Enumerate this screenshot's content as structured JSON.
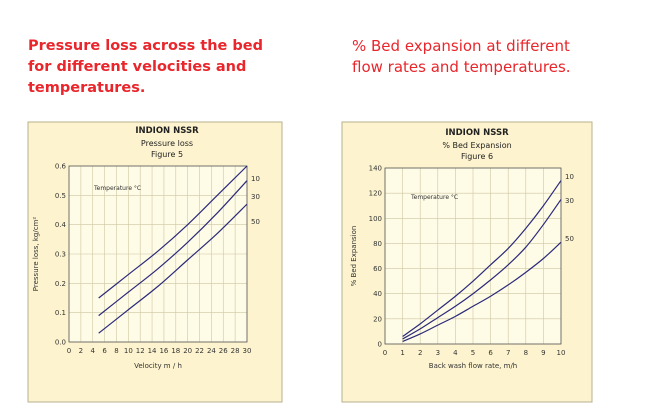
{
  "captions": {
    "left": [
      "Pressure loss across the bed",
      "for different velocities and",
      "temperatures."
    ],
    "right": [
      "% Bed expansion at different",
      "flow rates and temperatures."
    ]
  },
  "chart_data": [
    {
      "type": "line",
      "title": "INDION NSSR",
      "subtitle": "Pressure loss",
      "figure": "Figure 5",
      "xlabel": "Velocity m / h",
      "ylabel": "Pressure loss, kg/cm²",
      "annotation": "Temperature °C",
      "xlim": [
        0,
        30
      ],
      "ylim": [
        0,
        0.6
      ],
      "xticks": [
        "0",
        "2",
        "4",
        "6",
        "8",
        "10",
        "12",
        "14",
        "16",
        "18",
        "20",
        "22",
        "24",
        "26",
        "28",
        "30"
      ],
      "yticks": [
        "0.0",
        "0.1",
        "0.2",
        "0.3",
        "0.4",
        "0.5",
        "0.6"
      ],
      "grid": true,
      "series": [
        {
          "name": "10",
          "x": [
            5,
            10,
            15,
            20,
            25,
            30
          ],
          "y": [
            0.15,
            0.23,
            0.31,
            0.4,
            0.5,
            0.6
          ]
        },
        {
          "name": "30",
          "x": [
            5,
            10,
            15,
            20,
            25,
            30
          ],
          "y": [
            0.09,
            0.17,
            0.25,
            0.34,
            0.44,
            0.55
          ]
        },
        {
          "name": "50",
          "x": [
            5,
            10,
            15,
            20,
            25,
            30
          ],
          "y": [
            0.03,
            0.11,
            0.19,
            0.28,
            0.37,
            0.47
          ]
        }
      ]
    },
    {
      "type": "line",
      "title": "INDION NSSR",
      "subtitle": "% Bed Expansion",
      "figure": "Figure 6",
      "xlabel": "Back wash flow rate, m/h",
      "ylabel": "% Bed Expansion",
      "annotation": "Temperature °C",
      "xlim": [
        0,
        10
      ],
      "ylim": [
        0,
        140
      ],
      "xticks": [
        "0",
        "1",
        "2",
        "3",
        "4",
        "5",
        "6",
        "7",
        "8",
        "9",
        "10"
      ],
      "yticks": [
        "0",
        "20",
        "40",
        "60",
        "80",
        "100",
        "120",
        "140"
      ],
      "grid": true,
      "series": [
        {
          "name": "10",
          "x": [
            1,
            2,
            3,
            4,
            5,
            6,
            7,
            8,
            9,
            10
          ],
          "y": [
            6,
            16,
            27,
            38,
            50,
            63,
            76,
            92,
            110,
            130
          ]
        },
        {
          "name": "30",
          "x": [
            1,
            2,
            3,
            4,
            5,
            6,
            7,
            8,
            9,
            10
          ],
          "y": [
            4,
            12,
            21,
            30,
            40,
            51,
            63,
            77,
            95,
            115
          ]
        },
        {
          "name": "50",
          "x": [
            1,
            2,
            3,
            4,
            5,
            6,
            7,
            8,
            9,
            10
          ],
          "y": [
            2,
            8,
            15,
            22,
            30,
            38,
            47,
            57,
            68,
            81
          ]
        }
      ]
    }
  ]
}
